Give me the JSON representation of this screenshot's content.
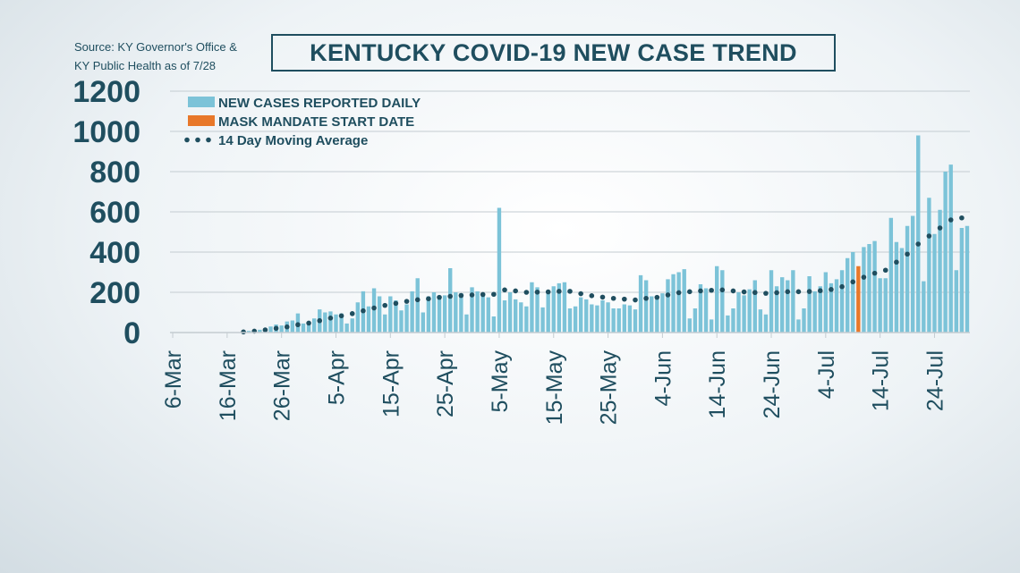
{
  "source_note": {
    "line1": "Source: KY Governor's Office &",
    "line2": "KY Public Health as of 7/28"
  },
  "chart_data": {
    "type": "bar",
    "title": "KENTUCKY COVID-19 NEW CASE TREND",
    "xlabel": "",
    "ylabel": "",
    "ylim": [
      0,
      1200
    ],
    "yticks": [
      0,
      200,
      400,
      600,
      800,
      1000,
      1200
    ],
    "grid": true,
    "legend_position": "top-left",
    "start_date": "2020-03-06",
    "x_tick_labels": [
      "6-Mar",
      "16-Mar",
      "26-Mar",
      "5-Apr",
      "15-Apr",
      "25-Apr",
      "5-May",
      "15-May",
      "25-May",
      "4-Jun",
      "14-Jun",
      "24-Jun",
      "4-Jul",
      "14-Jul",
      "24-Jul"
    ],
    "x_tick_day_index": [
      0,
      10,
      20,
      30,
      40,
      50,
      60,
      70,
      80,
      90,
      100,
      110,
      120,
      130,
      140
    ],
    "mask_mandate_day_index": 126,
    "colors": {
      "daily_cases": "#7cc3d8",
      "mask_mandate": "#e8782a",
      "moving_average": "#1f4e5f",
      "text": "#1f4e5f",
      "grid": "#c4ccd1"
    },
    "legend": {
      "daily_cases": "NEW CASES REPORTED DAILY",
      "mask_mandate": "MASK MANDATE START DATE",
      "moving_average": "14 Day Moving Average"
    },
    "series": [
      {
        "name": "NEW CASES REPORTED DAILY",
        "values": [
          0,
          0,
          0,
          0,
          0,
          0,
          0,
          0,
          0,
          0,
          0,
          0,
          0,
          5,
          8,
          12,
          14,
          18,
          30,
          40,
          35,
          55,
          60,
          95,
          45,
          40,
          70,
          115,
          100,
          105,
          90,
          95,
          45,
          70,
          150,
          205,
          130,
          220,
          180,
          90,
          180,
          160,
          110,
          140,
          205,
          270,
          100,
          180,
          200,
          170,
          185,
          320,
          200,
          195,
          90,
          225,
          205,
          190,
          175,
          80,
          620,
          160,
          200,
          165,
          150,
          130,
          250,
          225,
          125,
          200,
          230,
          245,
          250,
          120,
          130,
          175,
          165,
          140,
          135,
          160,
          150,
          120,
          120,
          140,
          135,
          115,
          285,
          260,
          180,
          165,
          195,
          265,
          290,
          300,
          315,
          70,
          120,
          240,
          220,
          65,
          330,
          310,
          85,
          120,
          200,
          185,
          215,
          260,
          115,
          90,
          310,
          230,
          275,
          260,
          310,
          65,
          120,
          280,
          205,
          230,
          300,
          245,
          265,
          310,
          370,
          400,
          330,
          425,
          440,
          455,
          270,
          270,
          570,
          450,
          420,
          530,
          580,
          980,
          255,
          670,
          490,
          610,
          800,
          835,
          310,
          520,
          530
        ]
      },
      {
        "name": "14 Day Moving Average",
        "values": [
          0,
          0,
          0,
          0,
          0,
          0,
          0,
          0,
          0,
          0,
          0,
          0,
          0,
          3,
          5,
          7,
          10,
          13,
          17,
          21,
          24,
          28,
          33,
          39,
          43,
          47,
          52,
          59,
          66,
          72,
          78,
          83,
          88,
          94,
          100,
          108,
          115,
          122,
          129,
          135,
          140,
          145,
          150,
          155,
          160,
          163,
          165,
          168,
          172,
          175,
          178,
          180,
          182,
          184,
          185,
          187,
          188,
          189,
          190,
          190,
          210,
          212,
          210,
          207,
          203,
          200,
          200,
          201,
          201,
          202,
          203,
          205,
          207,
          205,
          200,
          193,
          188,
          183,
          179,
          176,
          172,
          170,
          168,
          166,
          164,
          162,
          165,
          170,
          172,
          175,
          180,
          187,
          193,
          198,
          203,
          203,
          203,
          207,
          210,
          210,
          212,
          212,
          210,
          207,
          205,
          202,
          200,
          199,
          197,
          195,
          196,
          198,
          201,
          203,
          205,
          203,
          201,
          204,
          206,
          208,
          211,
          214,
          220,
          228,
          240,
          252,
          264,
          275,
          285,
          295,
          300,
          310,
          330,
          350,
          370,
          390,
          410,
          440,
          460,
          480,
          500,
          520,
          545,
          560,
          565,
          570,
          575
        ]
      }
    ]
  }
}
